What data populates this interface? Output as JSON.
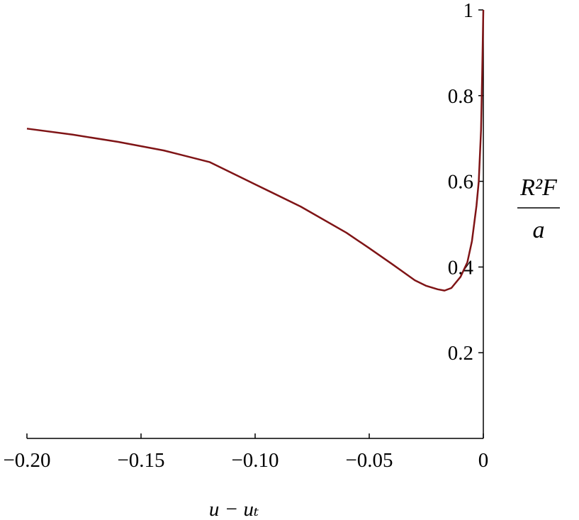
{
  "chart_data": {
    "type": "line",
    "xlabel": "u − uₜ",
    "ylabel": {
      "numerator": "R²F",
      "denominator": "a"
    },
    "x": [
      -0.2,
      -0.18,
      -0.16,
      -0.14,
      -0.12,
      -0.1,
      -0.08,
      -0.06,
      -0.05,
      -0.04,
      -0.03,
      -0.025,
      -0.02,
      -0.017,
      -0.014,
      -0.01,
      -0.007,
      -0.005,
      -0.003,
      -0.002,
      -0.001,
      -0.0005,
      0
    ],
    "series": [
      {
        "color": "#7f1416",
        "values": [
          0.723,
          0.709,
          0.692,
          0.672,
          0.645,
          0.593,
          0.541,
          0.48,
          0.444,
          0.407,
          0.369,
          0.356,
          0.348,
          0.345,
          0.351,
          0.377,
          0.411,
          0.46,
          0.543,
          0.6,
          0.72,
          0.85,
          1.0
        ]
      }
    ],
    "xlim": [
      -0.2,
      0
    ],
    "ylim": [
      0,
      1
    ],
    "xticks": [
      {
        "value": -0.2,
        "label": "−0.20"
      },
      {
        "value": -0.15,
        "label": "−0.15"
      },
      {
        "value": -0.1,
        "label": "−0.10"
      },
      {
        "value": -0.05,
        "label": "−0.05"
      },
      0
    ],
    "yticks": [
      0.2,
      0.4,
      0.6,
      0.8,
      1
    ]
  }
}
